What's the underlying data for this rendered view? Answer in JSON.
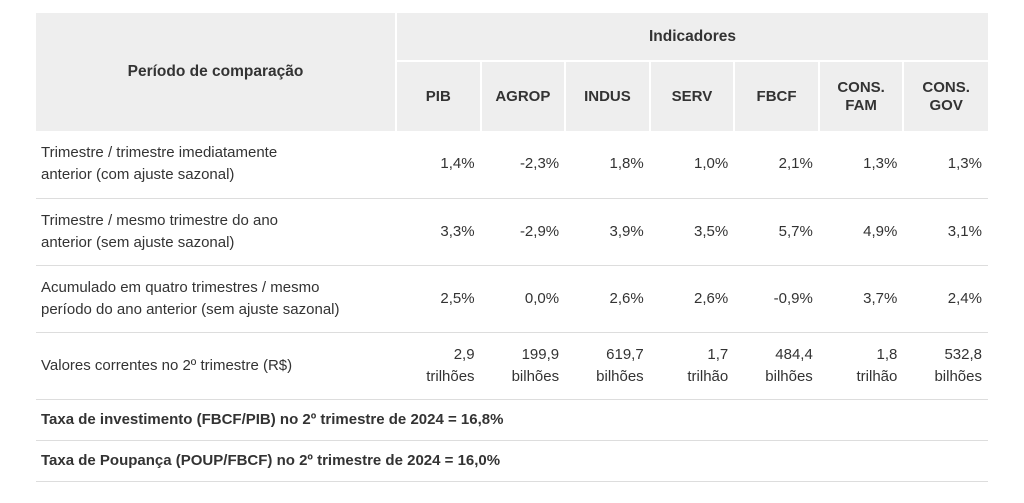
{
  "table": {
    "period_header": "Período de comparação",
    "group_header": "Indicadores",
    "indicators": [
      [
        "PIB"
      ],
      [
        "AGROP"
      ],
      [
        "INDUS"
      ],
      [
        "SERV"
      ],
      [
        "FBCF"
      ],
      [
        "CONS.",
        "FAM"
      ],
      [
        "CONS.",
        "GOV"
      ]
    ],
    "rows": [
      {
        "label": [
          "Trimestre / trimestre imediatamente",
          "anterior (com ajuste sazonal)"
        ],
        "values": [
          [
            "1,4%"
          ],
          [
            "-2,3%"
          ],
          [
            "1,8%"
          ],
          [
            "1,0%"
          ],
          [
            "2,1%"
          ],
          [
            "1,3%"
          ],
          [
            "1,3%"
          ]
        ]
      },
      {
        "label": [
          "Trimestre / mesmo trimestre do ano",
          "anterior (sem ajuste sazonal)"
        ],
        "values": [
          [
            "3,3%"
          ],
          [
            "-2,9%"
          ],
          [
            "3,9%"
          ],
          [
            "3,5%"
          ],
          [
            "5,7%"
          ],
          [
            "4,9%"
          ],
          [
            "3,1%"
          ]
        ]
      },
      {
        "label": [
          "Acumulado em quatro trimestres / mesmo",
          "período do ano anterior (sem ajuste sazonal)"
        ],
        "values": [
          [
            "2,5%"
          ],
          [
            "0,0%"
          ],
          [
            "2,6%"
          ],
          [
            "2,6%"
          ],
          [
            "-0,9%"
          ],
          [
            "3,7%"
          ],
          [
            "2,4%"
          ]
        ]
      },
      {
        "label": [
          "Valores correntes no 2º trimestre (R$)"
        ],
        "values": [
          [
            "2,9",
            "trilhões"
          ],
          [
            "199,9",
            "bilhões"
          ],
          [
            "619,7",
            "bilhões"
          ],
          [
            "1,7",
            "trilhão"
          ],
          [
            "484,4",
            "bilhões"
          ],
          [
            "1,8",
            "trilhão"
          ],
          [
            "532,8",
            "bilhões"
          ]
        ]
      }
    ],
    "notes": [
      "Taxa de investimento (FBCF/PIB) no 2º trimestre de 2024 = 16,8%",
      "Taxa de Poupança (POUP/FBCF) no 2º trimestre de 2024 = 16,0%"
    ]
  }
}
